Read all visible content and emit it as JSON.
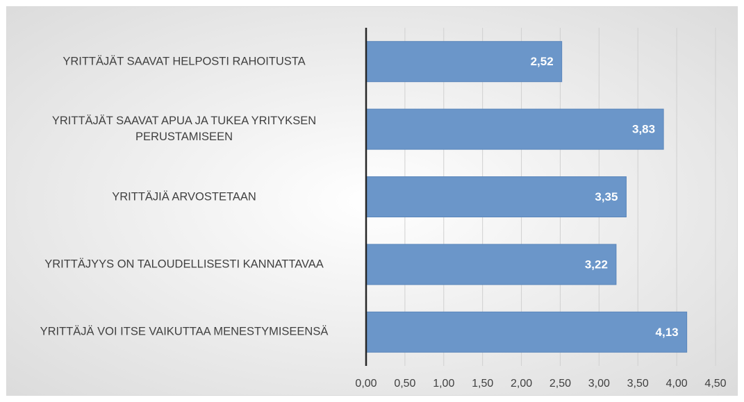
{
  "chart_data": {
    "type": "barh",
    "categories": [
      "YRITTÄJÄT SAAVAT HELPOSTI RAHOITUSTA",
      "YRITTÄJÄT SAAVAT APUA JA TUKEA YRITYKSEN PERUSTAMISEEN",
      "YRITTÄJIÄ ARVOSTETAAN",
      "YRITTÄJYYS ON TALOUDELLISESTI KANNATTAVAA",
      "YRITTÄJÄ VOI ITSE VAIKUTTAA MENESTYMISEENSÄ"
    ],
    "values": [
      2.52,
      3.83,
      3.35,
      3.22,
      4.13
    ],
    "value_labels": [
      "2,52",
      "3,83",
      "3,35",
      "3,22",
      "4,13"
    ],
    "color": "#6b96c9",
    "xlim": [
      0,
      4.5
    ],
    "xticks": [
      {
        "value": 0,
        "label": "0,00"
      },
      {
        "value": 0.5,
        "label": "0,50"
      },
      {
        "value": 1,
        "label": "1,00"
      },
      {
        "value": 1.5,
        "label": "1,50"
      },
      {
        "value": 2,
        "label": "2,00"
      },
      {
        "value": 2.5,
        "label": "2,50"
      },
      {
        "value": 3,
        "label": "3,00"
      },
      {
        "value": 3.5,
        "label": "3,50"
      },
      {
        "value": 4,
        "label": "4,00"
      },
      {
        "value": 4.5,
        "label": "4,50"
      }
    ],
    "grid": true
  }
}
